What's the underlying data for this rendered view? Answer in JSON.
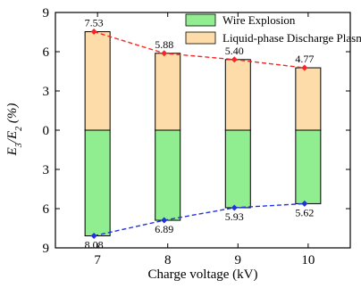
{
  "chart_data": {
    "type": "bar",
    "stacked_diverging": true,
    "x": [
      7,
      8,
      9,
      10
    ],
    "xlabel": "Charge voltage (kV)",
    "ylabel": "E3/E2 (%)",
    "y_ticks": [
      9,
      6,
      3,
      0,
      3,
      6,
      9
    ],
    "ylim": [
      -9,
      9
    ],
    "grid": false,
    "legend_position": "top-right",
    "series": [
      {
        "name": "Wire Explosion",
        "direction": "down",
        "color": "#90ee90",
        "values": [
          8.08,
          6.89,
          5.93,
          5.62
        ]
      },
      {
        "name": "Liquid-phase Discharge Plasma",
        "direction": "up",
        "color": "#fddcaa",
        "values": [
          7.53,
          5.88,
          5.4,
          4.77
        ]
      }
    ],
    "line_colors": {
      "up": "#ff2222",
      "down": "#2233dd"
    }
  }
}
